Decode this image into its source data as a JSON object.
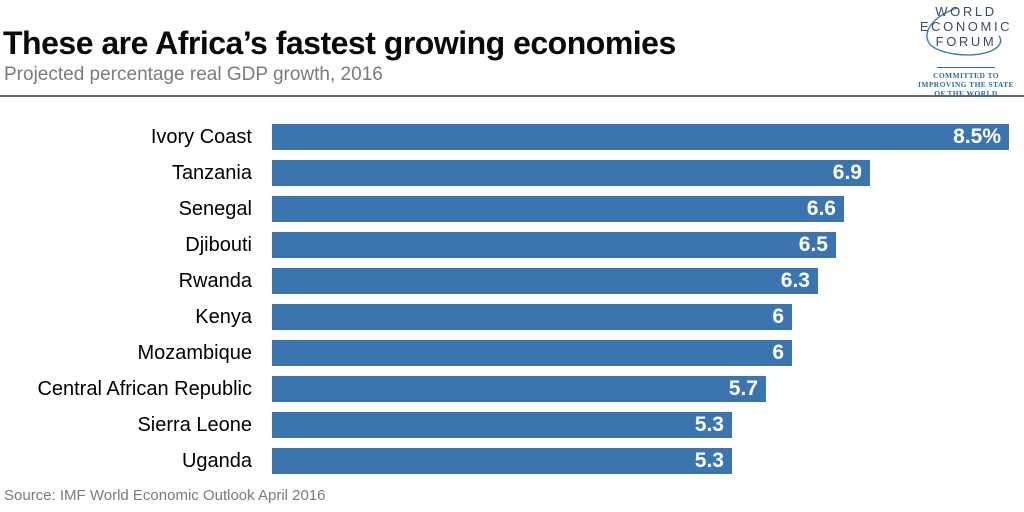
{
  "header": {
    "title": "These are Africa’s fastest growing economies",
    "subtitle": "Projected percentage real GDP growth, 2016"
  },
  "logo": {
    "name": "world-economic-forum-logo",
    "lines": [
      "WORLD",
      "ECONOMIC",
      "FORUM"
    ],
    "tagline_lines": [
      "COMMITTED TO",
      "IMPROVING THE STATE",
      "OF THE WORLD"
    ],
    "text_color": "#3b4d63",
    "accent_color": "#2c6aa3",
    "arc_color": "#4179b4"
  },
  "chart_data": {
    "type": "bar",
    "orientation": "horizontal",
    "title": "These are Africa’s fastest growing economies",
    "subtitle": "Projected percentage real GDP growth, 2016",
    "categories": [
      "Ivory Coast",
      "Tanzania",
      "Senegal",
      "Djibouti",
      "Rwanda",
      "Kenya",
      "Mozambique",
      "Central African Republic",
      "Sierra Leone",
      "Uganda"
    ],
    "values": [
      8.5,
      6.9,
      6.6,
      6.5,
      6.3,
      6.0,
      6.0,
      5.7,
      5.3,
      5.3
    ],
    "value_labels": [
      "8.5%",
      "6.9",
      "6.6",
      "6.5",
      "6.3",
      "6",
      "6",
      "5.7",
      "5.3",
      "5.3"
    ],
    "xlim": [
      0,
      8.5
    ],
    "grid": false,
    "legend": false,
    "bar_color": "#3c74b0",
    "value_label_color": "#ffffff",
    "category_label_color": "#000000"
  },
  "footer": {
    "source": "Source: IMF World Economic Outlook April 2016"
  }
}
